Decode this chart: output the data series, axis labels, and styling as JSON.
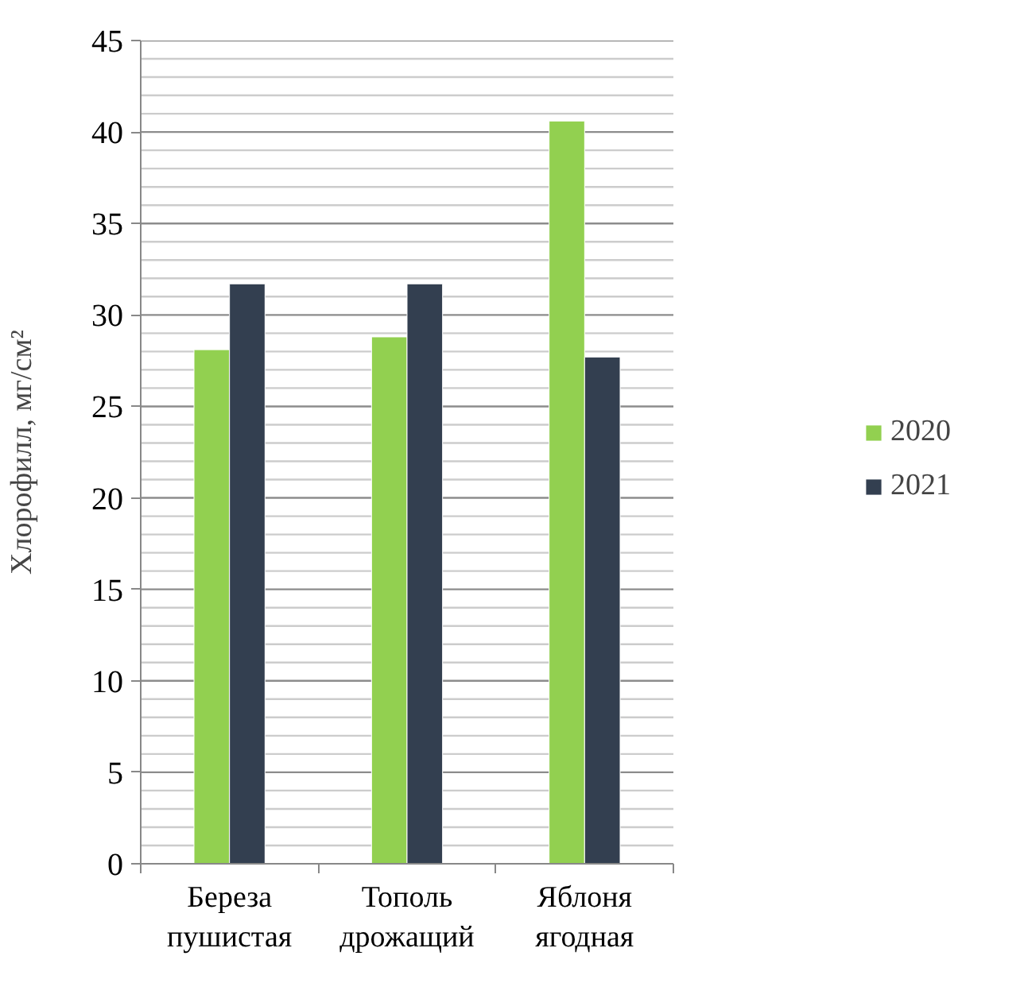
{
  "chart_data": {
    "type": "bar",
    "ylabel": "Хлорофилл, мг/см²",
    "categories": [
      "Береза\nпушистая",
      "Тополь\nдрожащий",
      "Яблоня\nягодная"
    ],
    "series": [
      {
        "name": "2020",
        "color": "#92d050",
        "values": [
          28.1,
          28.8,
          40.6
        ]
      },
      {
        "name": "2021",
        "color": "#333f50",
        "values": [
          31.7,
          31.7,
          27.7
        ]
      }
    ],
    "ylim": [
      0,
      45
    ],
    "yticks": [
      0,
      {
        "value": 1,
        "label": null
      },
      {
        "value": 2,
        "label": null
      },
      {
        "value": 3,
        "label": null
      },
      {
        "value": 4,
        "label": null
      },
      5,
      {
        "value": 6,
        "label": null
      },
      {
        "value": 7,
        "label": null
      },
      {
        "value": 8,
        "label": null
      },
      {
        "value": 9,
        "label": null
      },
      10,
      {
        "value": 11,
        "label": null
      },
      {
        "value": 12,
        "label": null
      },
      {
        "value": 13,
        "label": null
      },
      {
        "value": 14,
        "label": null
      },
      15,
      {
        "value": 16,
        "label": null
      },
      {
        "value": 17,
        "label": null
      },
      {
        "value": 18,
        "label": null
      },
      {
        "value": 19,
        "label": null
      },
      20,
      {
        "value": 21,
        "label": null
      },
      {
        "value": 22,
        "label": null
      },
      {
        "value": 23,
        "label": null
      },
      {
        "value": 24,
        "label": null
      },
      25,
      {
        "value": 26,
        "label": null
      },
      {
        "value": 27,
        "label": null
      },
      {
        "value": 28,
        "label": null
      },
      {
        "value": 29,
        "label": null
      },
      30,
      {
        "value": 31,
        "label": null
      },
      {
        "value": 32,
        "label": null
      },
      {
        "value": 33,
        "label": null
      },
      {
        "value": 34,
        "label": null
      },
      35,
      {
        "value": 36,
        "label": null
      },
      {
        "value": 37,
        "label": null
      },
      {
        "value": 38,
        "label": null
      },
      {
        "value": 39,
        "label": null
      },
      40,
      {
        "value": 41,
        "label": null
      },
      {
        "value": 42,
        "label": null
      },
      {
        "value": 43,
        "label": null
      },
      {
        "value": 44,
        "label": null
      },
      45
    ],
    "grid": "y",
    "legend": "right"
  }
}
